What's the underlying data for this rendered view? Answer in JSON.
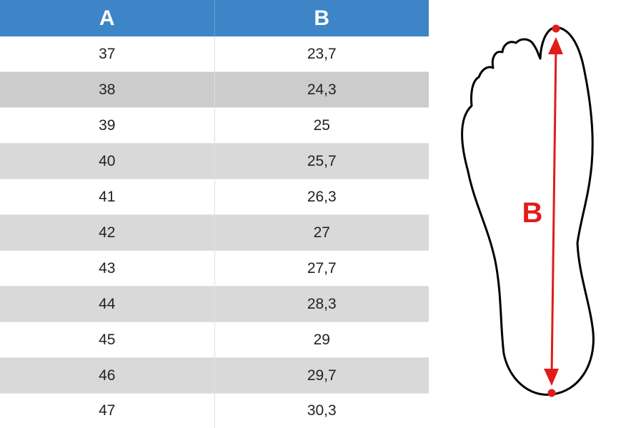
{
  "table": {
    "headers": [
      "A",
      "B"
    ],
    "rows": [
      [
        "37",
        "23,7"
      ],
      [
        "38",
        "24,3"
      ],
      [
        "39",
        "25"
      ],
      [
        "40",
        "25,7"
      ],
      [
        "41",
        "26,3"
      ],
      [
        "42",
        "27"
      ],
      [
        "43",
        "27,7"
      ],
      [
        "44",
        "28,3"
      ],
      [
        "45",
        "29"
      ],
      [
        "46",
        "29,7"
      ],
      [
        "47",
        "30,3"
      ]
    ]
  },
  "diagram": {
    "measurement_label": "B",
    "colors": {
      "outline": "#000000",
      "measure": "#e21b1b",
      "header": "#3d85c6"
    }
  }
}
